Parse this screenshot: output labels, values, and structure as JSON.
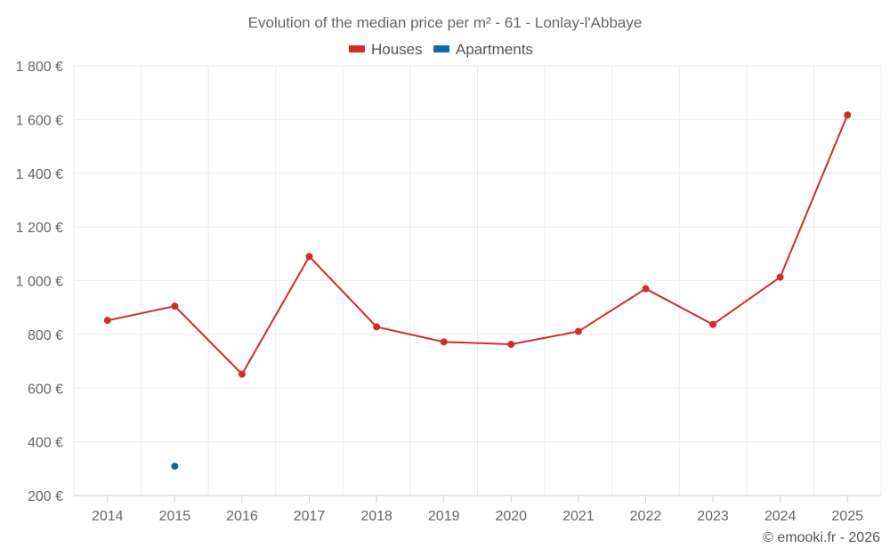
{
  "chart_data": {
    "type": "line",
    "title": "Evolution of the median price per m² - 61 - Lonlay-l'Abbaye",
    "categories": [
      "2014",
      "2015",
      "2016",
      "2017",
      "2018",
      "2019",
      "2020",
      "2021",
      "2022",
      "2023",
      "2024",
      "2025"
    ],
    "y_ticks": [
      {
        "value": 200,
        "label": "200 €"
      },
      {
        "value": 400,
        "label": "400 €"
      },
      {
        "value": 600,
        "label": "600 €"
      },
      {
        "value": 800,
        "label": "800 €"
      },
      {
        "value": 1000,
        "label": "1 000 €"
      },
      {
        "value": 1200,
        "label": "1 200 €"
      },
      {
        "value": 1400,
        "label": "1 400 €"
      },
      {
        "value": 1600,
        "label": "1 600 €"
      },
      {
        "value": 1800,
        "label": "1 800 €"
      }
    ],
    "ylim": [
      200,
      1800
    ],
    "grid": true,
    "legend_position": "top-center",
    "series": [
      {
        "name": "Houses",
        "color": "#d32a2a",
        "values": [
          852,
          905,
          652,
          1090,
          828,
          772,
          763,
          811,
          970,
          837,
          1013,
          1617
        ]
      },
      {
        "name": "Apartments",
        "color": "#0e6aa8",
        "values": [
          null,
          309,
          null,
          null,
          null,
          null,
          null,
          null,
          null,
          null,
          null,
          null
        ]
      }
    ],
    "credit": "© emooki.fr - 2026"
  }
}
